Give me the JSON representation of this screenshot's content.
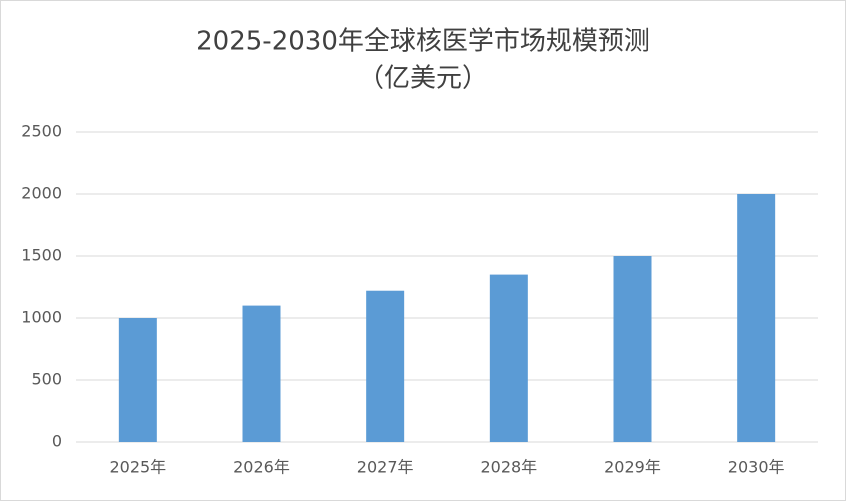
{
  "chart_data": {
    "type": "bar",
    "title": "2025-2030年全球核医学市场规模预测",
    "subtitle": "（亿美元）",
    "categories": [
      "2025年",
      "2026年",
      "2027年",
      "2028年",
      "2029年",
      "2030年"
    ],
    "values": [
      1000,
      1100,
      1220,
      1350,
      1500,
      2000
    ],
    "color": "#5b9bd5",
    "ylim": [
      0,
      2500
    ],
    "yticks": [
      0,
      500,
      1000,
      1500,
      2000,
      2500
    ],
    "grid": true
  }
}
